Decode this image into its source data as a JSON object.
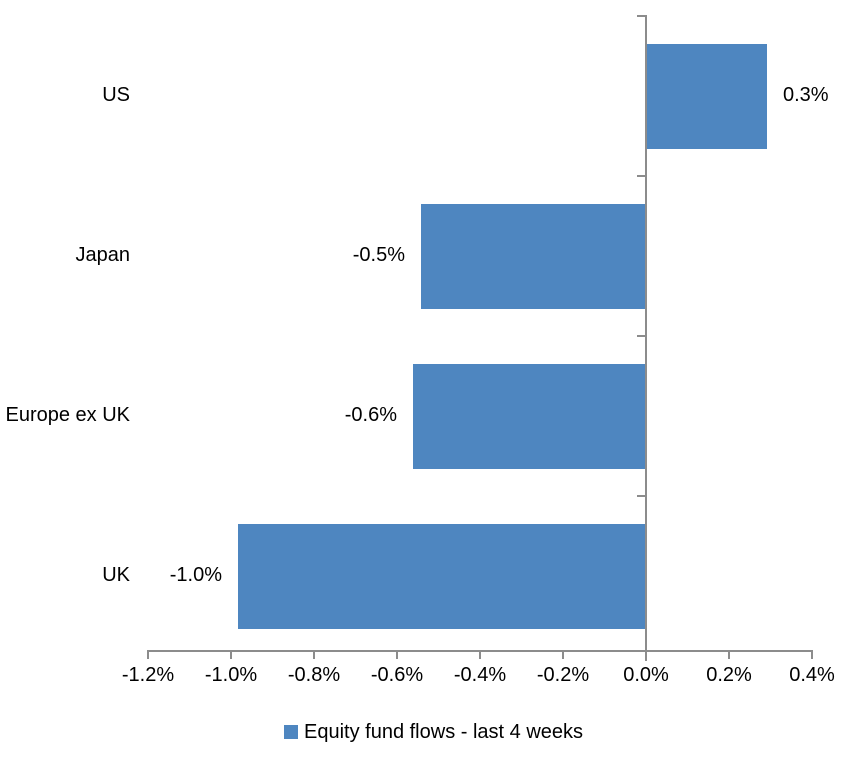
{
  "chart_data": {
    "type": "bar",
    "orientation": "horizontal",
    "title": "",
    "categories": [
      "US",
      "Japan",
      "Europe ex UK",
      "UK"
    ],
    "values": [
      0.3,
      -0.5,
      -0.6,
      -1.0
    ],
    "values_precise": [
      0.29,
      -0.54,
      -0.56,
      -0.98
    ],
    "data_labels": [
      "0.3%",
      "-0.5%",
      "-0.6%",
      "-1.0%"
    ],
    "series": [
      {
        "name": "Equity fund flows - last 4 weeks",
        "values": [
          0.3,
          -0.5,
          -0.6,
          -1.0
        ]
      }
    ],
    "x_axis": {
      "unit": "%",
      "min": -1.2,
      "max": 0.4,
      "tick_values": [
        -1.2,
        -1.0,
        -0.8,
        -0.6,
        -0.4,
        -0.2,
        0.0,
        0.2,
        0.4
      ],
      "tick_labels": [
        "-1.2%",
        "-1.0%",
        "-0.8%",
        "-0.6%",
        "-0.4%",
        "-0.2%",
        "0.0%",
        "0.2%",
        "0.4%"
      ]
    },
    "legend": {
      "position": "bottom",
      "entries": [
        "Equity fund flows - last 4 weeks"
      ]
    },
    "colors": {
      "bar": "#4E86C0",
      "axis": "#8C8C8C",
      "text": "#000000",
      "background": "#FFFFFF"
    },
    "grid": false
  }
}
